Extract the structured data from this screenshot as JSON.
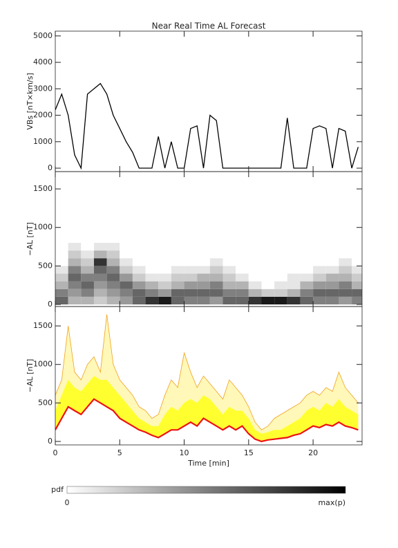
{
  "chart_data": [
    {
      "type": "line",
      "title": "Near Real Time AL Forecast",
      "ylabel": "VBs [nT×km/s]",
      "color": "#000000",
      "x": [
        0,
        0.5,
        1,
        1.5,
        2,
        2.5,
        3,
        3.5,
        4,
        4.5,
        5,
        5.5,
        6,
        6.5,
        7,
        7.5,
        8,
        8.5,
        9,
        9.5,
        10,
        10.5,
        11,
        11.5,
        12,
        12.5,
        13,
        13.5,
        14,
        14.5,
        15,
        15.5,
        16,
        16.5,
        17,
        17.5,
        18,
        18.5,
        19,
        19.5,
        20,
        20.5,
        21,
        21.5,
        22,
        22.5,
        23,
        23.5
      ],
      "values": [
        2200,
        2800,
        2000,
        500,
        0,
        2800,
        3000,
        3200,
        2800,
        2000,
        1500,
        1000,
        600,
        0,
        0,
        0,
        1200,
        0,
        1000,
        0,
        0,
        1500,
        1600,
        0,
        2000,
        1800,
        0,
        0,
        0,
        0,
        0,
        0,
        0,
        0,
        0,
        0,
        1900,
        0,
        0,
        0,
        1500,
        1600,
        1500,
        0,
        1500,
        1400,
        0,
        800
      ],
      "ylim": [
        -130,
        5180
      ],
      "yticks": [
        0,
        1000,
        2000,
        3000,
        4000,
        5000
      ]
    },
    {
      "type": "heatmap",
      "ylabel": "−AL [nT]",
      "x_bins": [
        0,
        1,
        2,
        3,
        4,
        5,
        6,
        7,
        8,
        9,
        10,
        11,
        12,
        13,
        14,
        15,
        16,
        17,
        18,
        19,
        20,
        21,
        22,
        23,
        24
      ],
      "y_bins": [
        0,
        100,
        200,
        300,
        400,
        500,
        600,
        700,
        800
      ],
      "values": [
        [
          0.6,
          0.5,
          0.3,
          0.2,
          0.1,
          0,
          0,
          0
        ],
        [
          0.3,
          0.4,
          0.5,
          0.6,
          0.5,
          0.3,
          0.2,
          0.1
        ],
        [
          0.3,
          0.5,
          0.6,
          0.5,
          0.3,
          0.2,
          0.1,
          0
        ],
        [
          0.2,
          0.3,
          0.4,
          0.5,
          0.6,
          0.8,
          0.3,
          0.1
        ],
        [
          0.3,
          0.4,
          0.5,
          0.6,
          0.5,
          0.3,
          0.2,
          0.1
        ],
        [
          0.4,
          0.5,
          0.6,
          0.4,
          0.2,
          0.1,
          0,
          0
        ],
        [
          0.6,
          0.6,
          0.4,
          0.2,
          0.1,
          0,
          0,
          0
        ],
        [
          0.8,
          0.5,
          0.3,
          0.1,
          0,
          0,
          0,
          0
        ],
        [
          0.9,
          0.4,
          0.2,
          0.1,
          0,
          0,
          0,
          0
        ],
        [
          0.6,
          0.6,
          0.3,
          0.2,
          0.1,
          0,
          0,
          0
        ],
        [
          0.5,
          0.6,
          0.4,
          0.2,
          0.1,
          0,
          0,
          0
        ],
        [
          0.5,
          0.6,
          0.4,
          0.3,
          0.1,
          0,
          0,
          0
        ],
        [
          0.4,
          0.6,
          0.5,
          0.3,
          0.2,
          0.1,
          0,
          0
        ],
        [
          0.6,
          0.5,
          0.3,
          0.2,
          0.1,
          0,
          0,
          0
        ],
        [
          0.6,
          0.5,
          0.3,
          0.1,
          0,
          0,
          0,
          0
        ],
        [
          0.8,
          0.3,
          0.1,
          0,
          0,
          0,
          0,
          0
        ],
        [
          0.9,
          0.2,
          0,
          0,
          0,
          0,
          0,
          0
        ],
        [
          0.9,
          0.2,
          0.1,
          0,
          0,
          0,
          0,
          0
        ],
        [
          0.8,
          0.3,
          0.1,
          0.1,
          0,
          0,
          0,
          0
        ],
        [
          0.6,
          0.5,
          0.3,
          0.1,
          0,
          0,
          0,
          0
        ],
        [
          0.5,
          0.6,
          0.4,
          0.2,
          0.1,
          0,
          0,
          0
        ],
        [
          0.5,
          0.6,
          0.4,
          0.3,
          0.1,
          0,
          0,
          0
        ],
        [
          0.4,
          0.6,
          0.5,
          0.3,
          0.2,
          0.1,
          0,
          0
        ],
        [
          0.5,
          0.6,
          0.3,
          0.2,
          0.1,
          0,
          0,
          0
        ]
      ],
      "ylim": [
        -27,
        1725
      ],
      "yticks": [
        0,
        500,
        1000,
        1500
      ]
    },
    {
      "type": "band",
      "ylabel": "−AL [nT]",
      "xlabel": "Time [min]",
      "x": [
        0,
        0.5,
        1,
        1.5,
        2,
        2.5,
        3,
        3.5,
        4,
        4.5,
        5,
        5.5,
        6,
        6.5,
        7,
        7.5,
        8,
        8.5,
        9,
        9.5,
        10,
        10.5,
        11,
        11.5,
        12,
        12.5,
        13,
        13.5,
        14,
        14.5,
        15,
        15.5,
        16,
        16.5,
        17,
        17.5,
        18,
        18.5,
        19,
        19.5,
        20,
        20.5,
        21,
        21.5,
        22,
        22.5,
        23,
        23.5
      ],
      "series": [
        {
          "color": "#f0a020",
          "values": [
            600,
            800,
            1500,
            900,
            800,
            1000,
            1100,
            900,
            1650,
            1000,
            800,
            700,
            600,
            450,
            400,
            300,
            350,
            600,
            800,
            700,
            1150,
            900,
            700,
            850,
            750,
            650,
            550,
            800,
            700,
            600,
            450,
            250,
            150,
            200,
            300,
            350,
            400,
            450,
            500,
            600,
            650,
            600,
            700,
            650,
            900,
            700,
            600,
            500
          ]
        },
        {
          "color": "#ffff30",
          "values": [
            400,
            600,
            800,
            700,
            650,
            750,
            850,
            800,
            800,
            700,
            600,
            500,
            400,
            300,
            250,
            200,
            200,
            350,
            450,
            400,
            500,
            550,
            500,
            600,
            550,
            450,
            350,
            450,
            400,
            400,
            300,
            150,
            100,
            120,
            150,
            150,
            200,
            250,
            300,
            400,
            450,
            400,
            500,
            450,
            550,
            450,
            400,
            350
          ]
        },
        {
          "color": "#ee1111",
          "values": [
            150,
            300,
            450,
            400,
            350,
            450,
            550,
            500,
            450,
            400,
            300,
            250,
            200,
            150,
            120,
            80,
            50,
            100,
            150,
            150,
            200,
            250,
            200,
            300,
            250,
            200,
            150,
            200,
            150,
            200,
            100,
            30,
            0,
            20,
            30,
            40,
            50,
            80,
            100,
            150,
            200,
            180,
            220,
            200,
            250,
            200,
            180,
            150
          ]
        }
      ],
      "xlim": [
        0,
        23.8
      ],
      "xticks": [
        0,
        5,
        10,
        15,
        20
      ],
      "ylim": [
        -45,
        1752
      ],
      "yticks": [
        0,
        500,
        1000,
        1500
      ]
    }
  ],
  "colorbar": {
    "label": "pdf",
    "min_label": "0",
    "max_label": "max(p)"
  }
}
